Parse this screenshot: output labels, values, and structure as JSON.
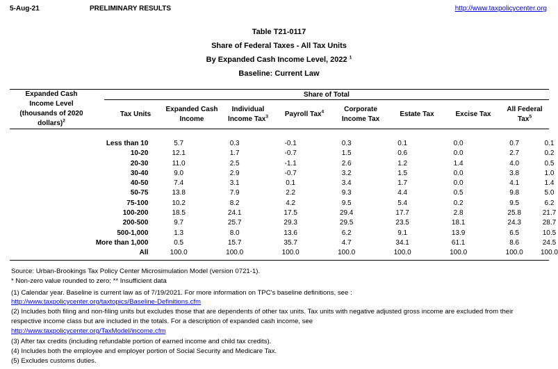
{
  "header": {
    "date": "5-Aug-21",
    "status": "PRELIMINARY RESULTS",
    "url": "http://www.taxpolicycenter.org"
  },
  "title": {
    "table_id": "Table T21-0117",
    "line1": "Share of Federal Taxes - All Tax Units",
    "line2": "By Expanded Cash Income Level, 2022",
    "line2_sup": "1",
    "line3": "Baseline: Current Law"
  },
  "columns": {
    "income_level": {
      "line1": "Expanded Cash",
      "line2": "Income Level",
      "line3": "(thousands of 2020",
      "line4": "dollars)",
      "sup": "2"
    },
    "group": "Share of Total",
    "tax_units": "Tax Units",
    "expanded_cash_income": {
      "line1": "Expanded Cash",
      "line2": "Income"
    },
    "individual_income_tax": {
      "line1": "Individual",
      "line2": "Income Tax",
      "sup": "3"
    },
    "payroll_tax": {
      "label": "Payroll Tax",
      "sup": "4"
    },
    "corporate_income_tax": {
      "line1": "Corporate",
      "line2": "Income Tax"
    },
    "estate_tax": "Estate Tax",
    "excise_tax": "Excise Tax",
    "all_federal_tax": {
      "line1": "All Federal",
      "line2": "Tax",
      "sup": "5"
    }
  },
  "rows": [
    {
      "label": "Less than 10",
      "values": [
        "5.7",
        "0.3",
        "-0.1",
        "0.3",
        "0.1",
        "0.0",
        "0.7",
        "0.1"
      ]
    },
    {
      "label": "10-20",
      "values": [
        "12.1",
        "1.7",
        "-0.7",
        "1.5",
        "0.6",
        "0.0",
        "2.7",
        "0.2"
      ]
    },
    {
      "label": "20-30",
      "values": [
        "11.0",
        "2.5",
        "-1.1",
        "2.6",
        "1.2",
        "1.4",
        "4.0",
        "0.5"
      ]
    },
    {
      "label": "30-40",
      "values": [
        "9.0",
        "2.9",
        "-0.7",
        "3.2",
        "1.5",
        "0.0",
        "3.8",
        "1.0"
      ]
    },
    {
      "label": "40-50",
      "values": [
        "7.4",
        "3.1",
        "0.1",
        "3.4",
        "1.7",
        "0.0",
        "4.1",
        "1.4"
      ]
    },
    {
      "label": "50-75",
      "values": [
        "13.8",
        "7.9",
        "2.2",
        "9.3",
        "4.4",
        "0.5",
        "9.8",
        "5.0"
      ]
    },
    {
      "label": "75-100",
      "values": [
        "10.2",
        "8.2",
        "4.2",
        "9.5",
        "5.4",
        "0.2",
        "9.5",
        "6.2"
      ]
    },
    {
      "label": "100-200",
      "values": [
        "18.5",
        "24.1",
        "17.5",
        "29.4",
        "17.7",
        "2.8",
        "25.8",
        "21.7"
      ]
    },
    {
      "label": "200-500",
      "values": [
        "9.7",
        "25.7",
        "29.3",
        "29.5",
        "23.5",
        "18.1",
        "24.3",
        "28.7"
      ]
    },
    {
      "label": "500-1,000",
      "values": [
        "1.3",
        "8.0",
        "13.6",
        "6.2",
        "9.1",
        "13.9",
        "6.5",
        "10.5"
      ]
    },
    {
      "label": "More than 1,000",
      "values": [
        "0.5",
        "15.7",
        "35.7",
        "4.7",
        "34.1",
        "61.1",
        "8.6",
        "24.5"
      ]
    },
    {
      "label": "All",
      "values": [
        "100.0",
        "100.0",
        "100.0",
        "100.0",
        "100.0",
        "100.0",
        "100.0",
        "100.0"
      ]
    }
  ],
  "footnotes": {
    "source": "Source: Urban-Brookings Tax Policy Center Microsimulation Model (version 0721-1).",
    "nonzero": "* Non-zero value rounded to zero; ** Insufficient data",
    "n1": "(1) Calendar year. Baseline is current law as of 7/19/2021. For more information on TPC's baseline definitions, see :",
    "n1_link": "http://www.taxpolicycenter.org/taxtopics/Baseline-Definitions.cfm",
    "n2a": "(2) Includes both filing and non-filing units but excludes those that are dependents of other tax units. Tax units with negative adjusted gross income are excluded from their",
    "n2b": "respective income class but are included in the totals. For a description of expanded cash income, see",
    "n2_link": "http://www.taxpolicycenter.org/TaxModel/income.cfm",
    "n3": "(3) After tax credits (including refundable portion of earned income and child tax credits).",
    "n4": "(4) Includes both the employee and employer portion of Social Security and Medicare Tax.",
    "n5": "(5) Excludes customs duties."
  }
}
